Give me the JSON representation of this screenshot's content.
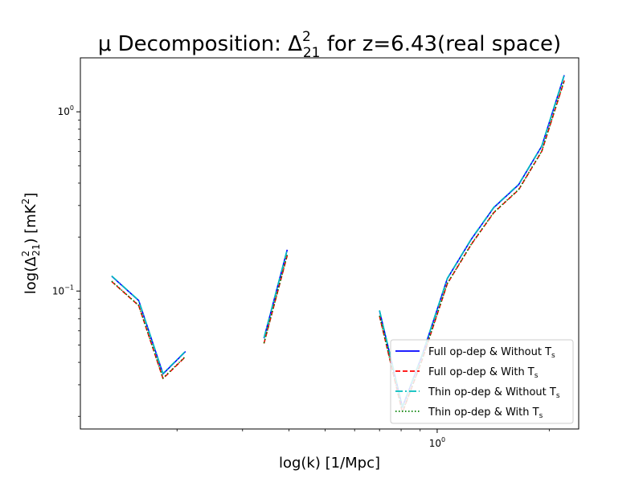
{
  "chart_data": {
    "type": "line",
    "title_main": "μ Decomposition: Δ",
    "title_sub": "21",
    "title_sup": "2",
    "title_rest": " for z=6.43(real space)",
    "xlabel": "log(k) [1/Mpc]",
    "ylabel_main": "log(Δ",
    "ylabel_sub": "21",
    "ylabel_sup": "2",
    "ylabel_rest": ") [mK",
    "ylabel_end": "]",
    "x_scale": "log",
    "y_scale": "log",
    "xlim": [
      0.11,
      2.4
    ],
    "ylim": [
      0.017,
      2.0
    ],
    "x_tick_labels": [
      {
        "value": 1,
        "base": "10",
        "exp": "0"
      }
    ],
    "y_tick_labels": [
      {
        "value": 0.1,
        "base": "10",
        "exp": "−1"
      },
      {
        "value": 1,
        "base": "10",
        "exp": "0"
      }
    ],
    "x_minor_ticks": [
      0.2,
      0.3,
      0.4,
      0.5,
      0.6,
      0.7,
      0.8,
      0.9,
      2
    ],
    "y_minor_ticks": [
      0.02,
      0.03,
      0.04,
      0.05,
      0.06,
      0.07,
      0.08,
      0.09,
      0.2,
      0.3,
      0.4,
      0.5,
      0.6,
      0.7,
      0.8,
      0.9
    ],
    "grid": false,
    "legend_position": "lower-right",
    "series": [
      {
        "name_main": "Full op-dep & Without T",
        "name_sub": "s",
        "color": "#0000ff",
        "dash": "",
        "segments": [
          [
            [
              0.1335,
              0.121
            ],
            [
              0.1578,
              0.0885
            ],
            [
              0.1834,
              0.0345
            ],
            [
              0.2108,
              0.046
            ]
          ],
          [
            [
              0.3425,
              0.0545
            ],
            [
              0.3955,
              0.17
            ]
          ],
          [
            [
              0.7,
              0.0775
            ],
            [
              0.8065,
              0.0225
            ],
            [
              0.91,
              0.0435
            ],
            [
              1.065,
              0.1175
            ],
            [
              1.235,
              0.1945
            ],
            [
              1.42,
              0.2925
            ],
            [
              1.655,
              0.392
            ],
            [
              1.91,
              0.6435
            ],
            [
              2.195,
              1.6
            ]
          ]
        ]
      },
      {
        "name_main": "Full op-dep & With T",
        "name_sub": "s",
        "color": "#ff0000",
        "dash": "6,3",
        "segments": [
          [
            [
              0.1335,
              0.113
            ],
            [
              0.1578,
              0.083
            ],
            [
              0.1834,
              0.0325
            ],
            [
              0.2108,
              0.043
            ]
          ],
          [
            [
              0.3425,
              0.051
            ],
            [
              0.3955,
              0.158
            ]
          ],
          [
            [
              0.7,
              0.0725
            ],
            [
              0.8065,
              0.021
            ],
            [
              0.91,
              0.041
            ],
            [
              1.065,
              0.11
            ],
            [
              1.235,
              0.182
            ],
            [
              1.42,
              0.274
            ],
            [
              1.655,
              0.367
            ],
            [
              1.91,
              0.602
            ],
            [
              2.195,
              1.49
            ]
          ]
        ]
      },
      {
        "name_main": "Thin op-dep & Without T",
        "name_sub": "s",
        "color": "#00bfbf",
        "dash": "9,3,2,3",
        "segments": [
          [
            [
              0.1335,
              0.1215
            ],
            [
              0.1578,
              0.0888
            ],
            [
              0.1834,
              0.0347
            ],
            [
              0.2108,
              0.0462
            ]
          ],
          [
            [
              0.3425,
              0.0548
            ],
            [
              0.3955,
              0.171
            ]
          ],
          [
            [
              0.7,
              0.078
            ],
            [
              0.8065,
              0.0227
            ],
            [
              0.91,
              0.0438
            ],
            [
              1.065,
              0.118
            ],
            [
              1.235,
              0.1955
            ],
            [
              1.42,
              0.294
            ],
            [
              1.655,
              0.394
            ],
            [
              1.91,
              0.6465
            ],
            [
              2.195,
              1.61
            ]
          ]
        ]
      },
      {
        "name_main": "Thin op-dep & With T",
        "name_sub": "s",
        "color": "#008000",
        "dash": "1.5,2.5",
        "segments": [
          [
            [
              0.1335,
              0.1135
            ],
            [
              0.1578,
              0.0832
            ],
            [
              0.1834,
              0.0327
            ],
            [
              0.2108,
              0.0432
            ]
          ],
          [
            [
              0.3425,
              0.0512
            ],
            [
              0.3955,
              0.159
            ]
          ],
          [
            [
              0.7,
              0.0728
            ],
            [
              0.8065,
              0.0212
            ],
            [
              0.91,
              0.0412
            ],
            [
              1.065,
              0.1105
            ],
            [
              1.235,
              0.1828
            ],
            [
              1.42,
              0.2752
            ],
            [
              1.655,
              0.3685
            ],
            [
              1.91,
              0.6045
            ],
            [
              2.195,
              1.5
            ]
          ]
        ]
      }
    ]
  }
}
